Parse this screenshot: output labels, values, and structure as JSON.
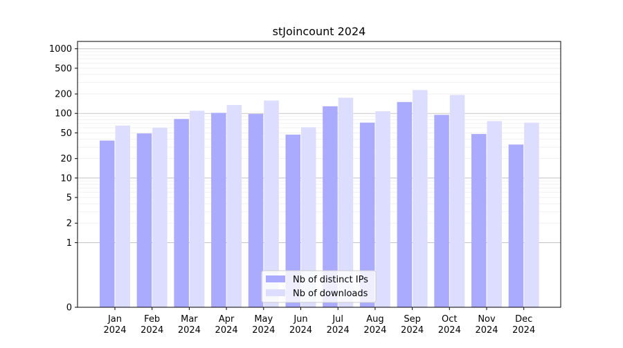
{
  "chart_data": {
    "type": "bar",
    "title": "stJoincount 2024",
    "xlabel": "",
    "ylabel": "",
    "scale": "symlog",
    "ylim": [
      0,
      1300
    ],
    "categories": [
      [
        "Jan",
        "2024"
      ],
      [
        "Feb",
        "2024"
      ],
      [
        "Mar",
        "2024"
      ],
      [
        "Apr",
        "2024"
      ],
      [
        "May",
        "2024"
      ],
      [
        "Jun",
        "2024"
      ],
      [
        "Jul",
        "2024"
      ],
      [
        "Aug",
        "2024"
      ],
      [
        "Sep",
        "2024"
      ],
      [
        "Oct",
        "2024"
      ],
      [
        "Nov",
        "2024"
      ],
      [
        "Dec",
        "2024"
      ]
    ],
    "yticks": [
      0,
      1,
      2,
      5,
      10,
      20,
      50,
      100,
      200,
      500,
      1000
    ],
    "ytick_labels": [
      "0",
      "1",
      "2",
      "5",
      "10",
      "20",
      "50",
      "100",
      "200",
      "500",
      "1000"
    ],
    "series": [
      {
        "name": "Nb of distinct IPs",
        "color": "#aaaaff",
        "values": [
          38,
          49,
          82,
          102,
          98,
          47,
          129,
          72,
          150,
          95,
          48,
          33
        ]
      },
      {
        "name": "Nb of downloads",
        "color": "#ddddff",
        "values": [
          65,
          60,
          110,
          135,
          158,
          61,
          175,
          108,
          230,
          193,
          76,
          72
        ]
      }
    ],
    "grid": true,
    "legend_position": "bottom-center"
  }
}
